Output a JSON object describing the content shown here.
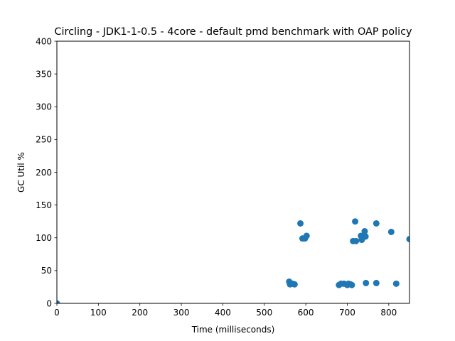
{
  "chart_data": {
    "type": "scatter",
    "title": "Circling - JDK1-1-0.5 - 4core -  default pmd benchmark with OAP policy",
    "xlabel": "Time (milliseconds)",
    "ylabel": "GC Util %",
    "xlim": [
      0,
      850
    ],
    "ylim": [
      0,
      400
    ],
    "xticks": [
      0,
      100,
      200,
      300,
      400,
      500,
      600,
      700,
      800
    ],
    "yticks": [
      0,
      50,
      100,
      150,
      200,
      250,
      300,
      350,
      400
    ],
    "grid": false,
    "marker_color": "#1f77b4",
    "series": [
      {
        "points": [
          [
            0,
            0
          ],
          [
            560,
            33
          ],
          [
            562,
            29
          ],
          [
            568,
            30
          ],
          [
            573,
            29
          ],
          [
            587,
            122
          ],
          [
            592,
            99
          ],
          [
            598,
            99
          ],
          [
            602,
            103
          ],
          [
            680,
            28
          ],
          [
            685,
            30
          ],
          [
            692,
            30
          ],
          [
            700,
            28
          ],
          [
            703,
            30
          ],
          [
            708,
            29
          ],
          [
            711,
            28
          ],
          [
            714,
            95
          ],
          [
            719,
            125
          ],
          [
            721,
            95
          ],
          [
            733,
            103
          ],
          [
            735,
            97
          ],
          [
            740,
            102
          ],
          [
            742,
            110
          ],
          [
            744,
            102
          ],
          [
            745,
            31
          ],
          [
            770,
            31
          ],
          [
            770,
            122
          ],
          [
            806,
            109
          ],
          [
            818,
            30
          ],
          [
            850,
            98
          ]
        ]
      }
    ]
  }
}
